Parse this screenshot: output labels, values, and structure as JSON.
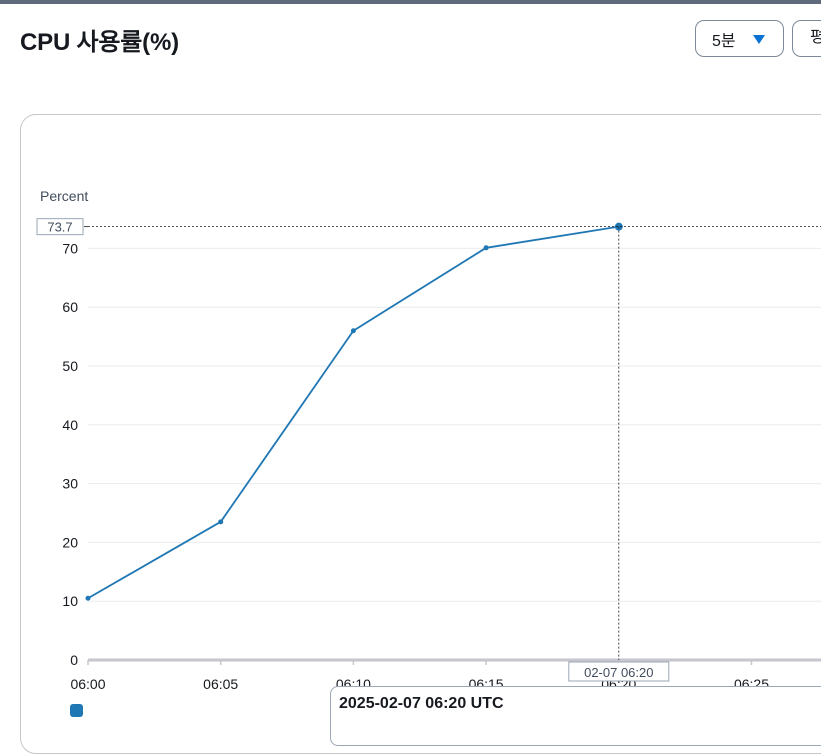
{
  "header": {
    "title": "CPU 사용률(%)",
    "period_select": "5분",
    "statistic_select": "평"
  },
  "tooltip": {
    "title": "2025-02-07 06:20 UTC"
  },
  "legend": {
    "label": ""
  },
  "colors": {
    "series": "#1f77b4",
    "accent": "#0972d3"
  },
  "chart_data": {
    "type": "line",
    "ylabel": "Percent",
    "x": [
      "06:00",
      "06:05",
      "06:10",
      "06:15",
      "06:20"
    ],
    "xticks": [
      "06:00",
      "06:05",
      "06:10",
      "06:15",
      "06:20",
      "06:25"
    ],
    "series": [
      {
        "values": [
          10.5,
          23.5,
          56,
          70.1,
          73.7
        ]
      }
    ],
    "ylim": [
      0,
      73.7
    ],
    "yticks": [
      0,
      10,
      20,
      30,
      40,
      50,
      60,
      70
    ],
    "grid": true,
    "crosshair": {
      "x_label": "02-07 06:20",
      "y_label": "73.7"
    }
  }
}
